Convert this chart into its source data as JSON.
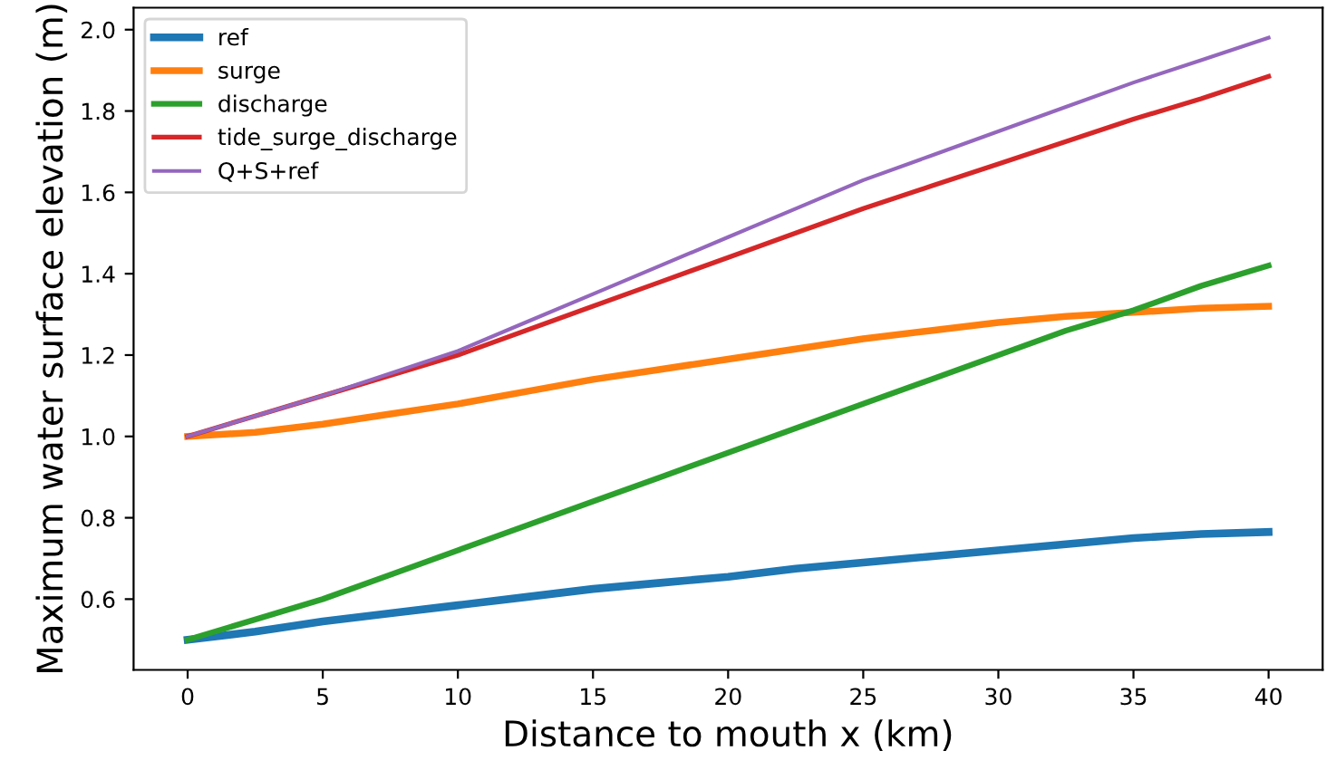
{
  "chart_data": {
    "type": "line",
    "xlabel": "Distance to mouth x (km)",
    "ylabel": "Maximum water surface elevation (m)",
    "x": [
      0,
      2.5,
      5,
      7.5,
      10,
      12.5,
      15,
      17.5,
      20,
      22.5,
      25,
      27.5,
      30,
      32.5,
      35,
      37.5,
      40
    ],
    "series": [
      {
        "name": "ref",
        "color": "#1f77b4",
        "values": [
          0.5,
          0.52,
          0.545,
          0.565,
          0.585,
          0.605,
          0.625,
          0.64,
          0.655,
          0.675,
          0.69,
          0.705,
          0.72,
          0.735,
          0.75,
          0.76,
          0.765
        ]
      },
      {
        "name": "surge",
        "color": "#ff7f0e",
        "values": [
          1.0,
          1.01,
          1.03,
          1.055,
          1.08,
          1.11,
          1.14,
          1.165,
          1.19,
          1.215,
          1.24,
          1.26,
          1.28,
          1.295,
          1.305,
          1.315,
          1.32
        ]
      },
      {
        "name": "discharge",
        "color": "#2ca02c",
        "values": [
          0.5,
          0.55,
          0.6,
          0.66,
          0.72,
          0.78,
          0.84,
          0.9,
          0.96,
          1.02,
          1.08,
          1.14,
          1.2,
          1.26,
          1.31,
          1.37,
          1.42
        ]
      },
      {
        "name": "tide_surge_discharge",
        "color": "#d62728",
        "values": [
          1.0,
          1.05,
          1.1,
          1.15,
          1.2,
          1.26,
          1.32,
          1.38,
          1.44,
          1.5,
          1.56,
          1.615,
          1.67,
          1.725,
          1.78,
          1.83,
          1.885
        ]
      },
      {
        "name": "Q+S+ref",
        "color": "#9467bd",
        "values": [
          1.0,
          1.05,
          1.1,
          1.155,
          1.21,
          1.28,
          1.35,
          1.42,
          1.49,
          1.56,
          1.63,
          1.69,
          1.75,
          1.81,
          1.87,
          1.925,
          1.98
        ]
      }
    ],
    "xlim": [
      -2,
      42
    ],
    "xticks": [
      0,
      5,
      10,
      15,
      20,
      25,
      30,
      35,
      40
    ],
    "ylim": [
      0.426,
      2.054
    ],
    "yticks": [
      0.6,
      0.8,
      {
        "value": 1,
        "label": "1.0"
      },
      1.2,
      1.4,
      1.6,
      1.8,
      {
        "value": 2,
        "label": "2.0"
      }
    ],
    "grid": false,
    "legend": "top left",
    "marker": "none",
    "line_style": "solid"
  }
}
